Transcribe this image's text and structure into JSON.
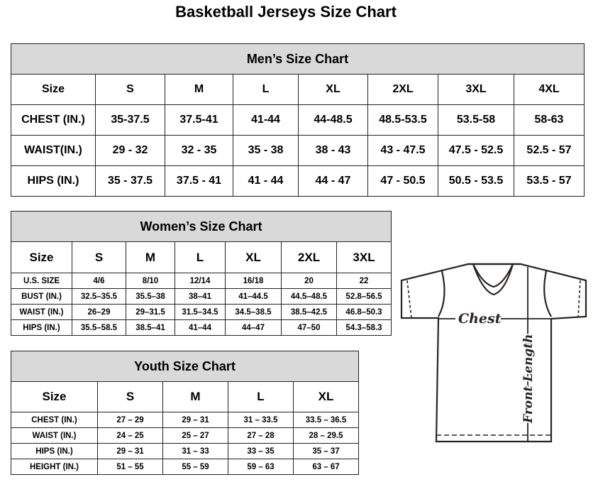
{
  "title": "Basketball Jerseys Size Chart",
  "men": {
    "title": "Men’s Size Chart",
    "headers": [
      "Size",
      "S",
      "M",
      "L",
      "XL",
      "2XL",
      "3XL",
      "4XL"
    ],
    "rows": [
      [
        "CHEST (IN.)",
        "35-37.5",
        "37.5-41",
        "41-44",
        "44-48.5",
        "48.5-53.5",
        "53.5-58",
        "58-63"
      ],
      [
        "WAIST(IN.)",
        "29 - 32",
        "32 - 35",
        "35 - 38",
        "38 - 43",
        "43 - 47.5",
        "47.5 - 52.5",
        "52.5 - 57"
      ],
      [
        "HIPS (IN.)",
        "35 - 37.5",
        "37.5 - 41",
        "41 - 44",
        "44 - 47",
        "47 - 50.5",
        "50.5 - 53.5",
        "53.5 - 57"
      ]
    ]
  },
  "women": {
    "title": "Women’s Size Chart",
    "headers": [
      "Size",
      "S",
      "M",
      "L",
      "XL",
      "2XL",
      "3XL"
    ],
    "rows": [
      [
        "U.S. SIZE",
        "4/6",
        "8/10",
        "12/14",
        "16/18",
        "20",
        "22"
      ],
      [
        "BUST (IN.)",
        "32.5–35.5",
        "35.5–38",
        "38–41",
        "41–44.5",
        "44.5–48.5",
        "52.8–56.5"
      ],
      [
        "WAIST (IN.)",
        "26–29",
        "29–31.5",
        "31.5–34.5",
        "34.5–38.5",
        "38.5–42.5",
        "46.8–50.3"
      ],
      [
        "HIPS (IN.)",
        "35.5–58.5",
        "38.5–41",
        "41–44",
        "44–47",
        "47–50",
        "54.3–58.3"
      ]
    ]
  },
  "youth": {
    "title": "Youth Size Chart",
    "headers": [
      "Size",
      "S",
      "M",
      "L",
      "XL"
    ],
    "rows": [
      [
        "CHEST (IN.)",
        "27 – 29",
        "29 – 31",
        "31 – 33.5",
        "33.5 – 36.5"
      ],
      [
        "WAIST (IN.)",
        "24 – 25",
        "25 – 27",
        "27 – 28",
        "28 – 29.5"
      ],
      [
        "HIPS (IN.)",
        "29 – 31",
        "31 – 33",
        "33 – 35",
        "35 – 37"
      ],
      [
        "HEIGHT (IN.)",
        "51 – 55",
        "55 – 59",
        "59 – 63",
        "63 – 67"
      ]
    ]
  },
  "diagram": {
    "chest_label": "Chest",
    "length_label": "Front Length"
  },
  "colors": {
    "header_bg": "#d9d9d9",
    "line": "#2a2220"
  }
}
